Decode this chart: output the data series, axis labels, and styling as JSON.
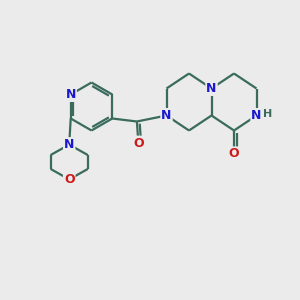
{
  "bg_color": "#ebebeb",
  "bond_color": "#3a6b5c",
  "N_color": "#1a1acc",
  "O_color": "#cc1a1a",
  "line_width": 1.6,
  "font_size_atom": 9,
  "xlim": [
    0,
    10
  ],
  "ylim": [
    0,
    10
  ]
}
